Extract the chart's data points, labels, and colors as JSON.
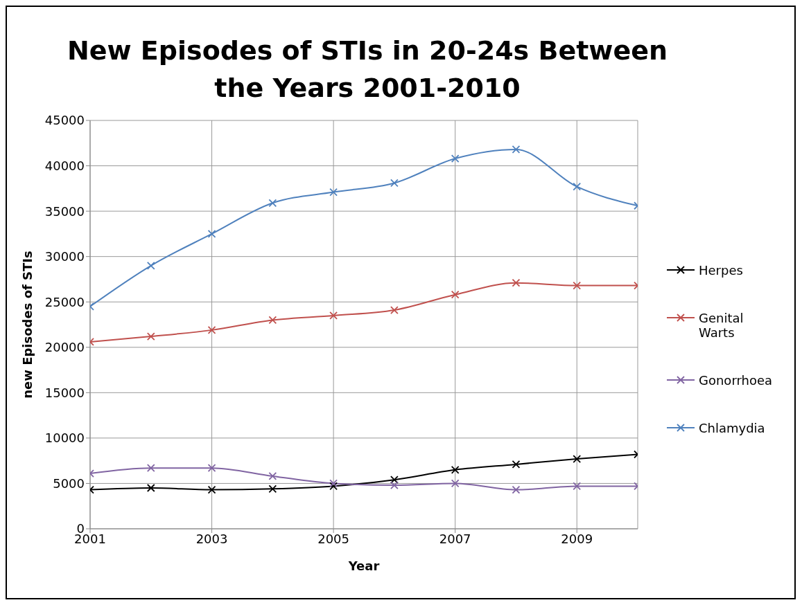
{
  "chart_data": {
    "type": "line",
    "title": "New Episodes of STIs in 20-24s Between the Years 2001-2010",
    "xlabel": "Year",
    "ylabel": "new Episodes of STIs",
    "x": [
      2001,
      2002,
      2003,
      2004,
      2005,
      2006,
      2007,
      2008,
      2009,
      2010
    ],
    "series": [
      {
        "name": "Herpes",
        "color": "#000000",
        "values": [
          4300,
          4500,
          4300,
          4400,
          4700,
          5400,
          6500,
          7100,
          7700,
          8200
        ]
      },
      {
        "name": "Genital Warts",
        "color": "#c0504d",
        "values": [
          20600,
          21200,
          21900,
          23000,
          23500,
          24100,
          25800,
          27100,
          26800,
          26800
        ]
      },
      {
        "name": "Gonorrhoea",
        "color": "#8064a2",
        "values": [
          6100,
          6700,
          6700,
          5800,
          5000,
          4800,
          5000,
          4300,
          4700,
          4700
        ]
      },
      {
        "name": "Chlamydia",
        "color": "#4f81bd",
        "values": [
          24500,
          29000,
          32500,
          35900,
          37100,
          38100,
          40800,
          41800,
          37700,
          35600
        ]
      }
    ],
    "xlim": [
      2001,
      2010
    ],
    "xticks": [
      2001,
      2003,
      2005,
      2007,
      2009
    ],
    "ylim": [
      0,
      45000
    ],
    "yticks": [
      0,
      5000,
      10000,
      15000,
      20000,
      25000,
      30000,
      35000,
      40000,
      45000
    ],
    "grid": true,
    "legend": "right",
    "marker": "cross",
    "line_style": "solid"
  }
}
